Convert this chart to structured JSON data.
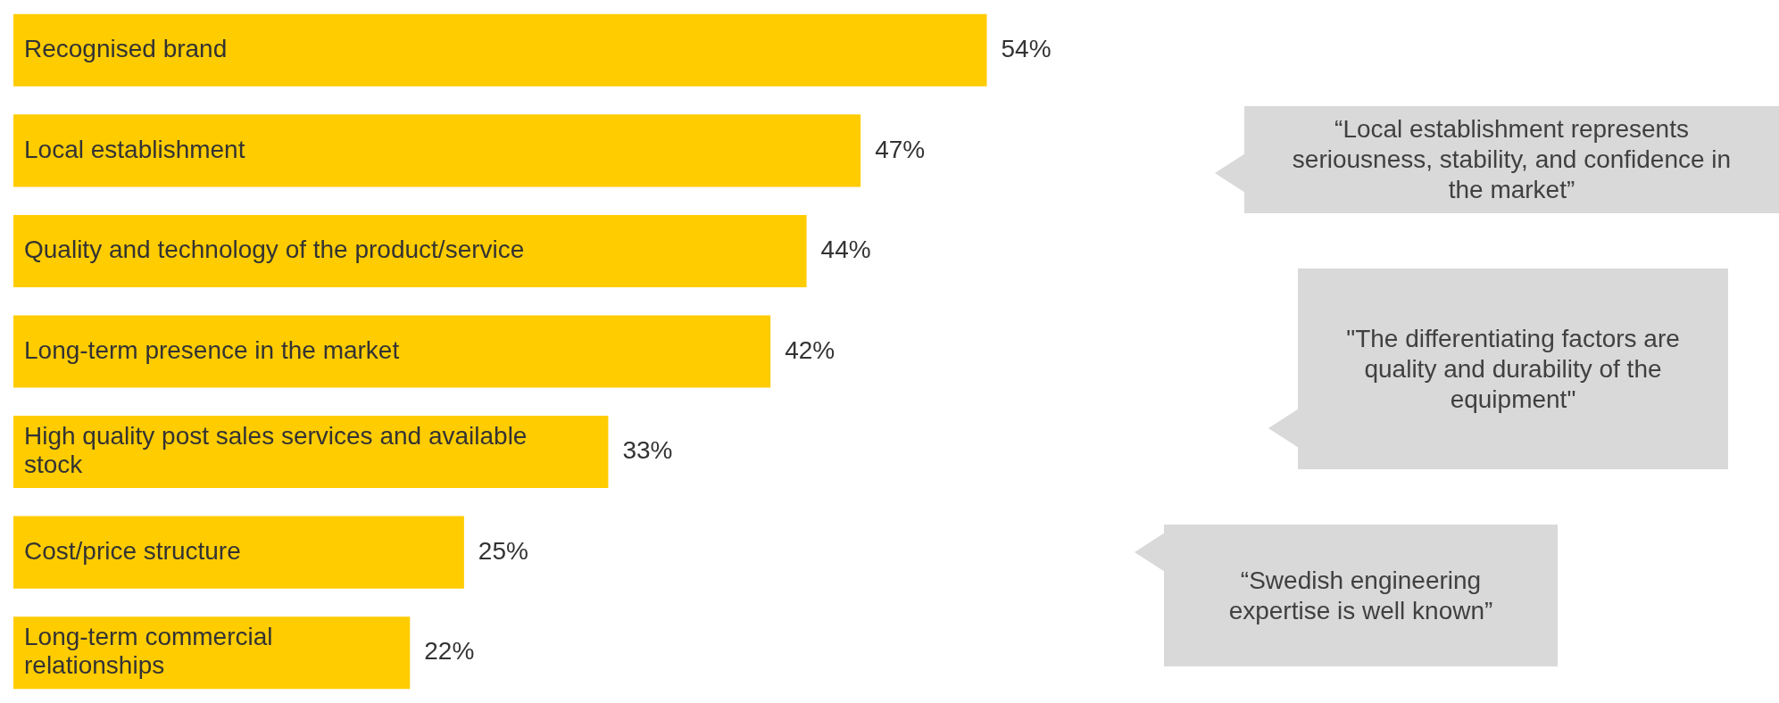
{
  "chart_data": {
    "type": "bar",
    "orientation": "horizontal",
    "tick_labels": false,
    "categories": [
      "Recognised brand",
      "Local establishment",
      "Quality and technology of the product/service",
      "Long-term presence in the market",
      "High quality post sales services and available stock",
      "Cost/price structure",
      "Long-term commercial relationships"
    ],
    "values": [
      54,
      47,
      44,
      42,
      33,
      25,
      22
    ],
    "value_labels": [
      "54%",
      "47%",
      "44%",
      "42%",
      "33%",
      "25%",
      "22%"
    ],
    "color": "#ffcc00",
    "annotations": [
      "“Local establishment represents seriousness, stability, and confidence in the market”",
      "\"The differentiating factors are quality and durability of the equipment\"",
      "“Swedish engineering expertise is well known”"
    ]
  }
}
